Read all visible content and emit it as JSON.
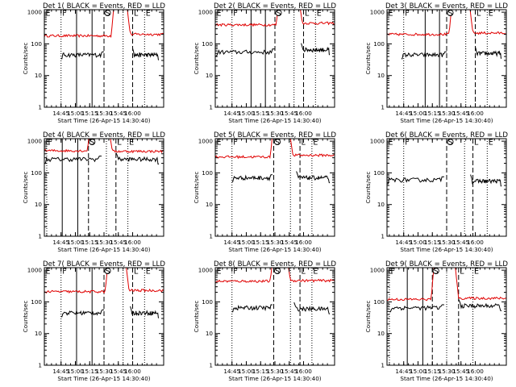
{
  "chart_data": [
    {
      "id": "det1",
      "type": "line",
      "title": "Det 1( BLACK = Events, RED = LLD",
      "xlabel": "Start Time (26-Apr-15 14:30:40)",
      "ylabel": "Counts/sec",
      "yscale": "log",
      "ylim": [
        1,
        1200
      ],
      "x_ticks": [
        "14:45",
        "15:00",
        "15:15",
        "15:30",
        "15:45",
        "16:00"
      ],
      "y_ticks": [
        "1",
        "10",
        "100",
        "1000"
      ],
      "lld": {
        "before": 180,
        "peak_start": 0.6,
        "peak_end": 0.67,
        "after": 200
      },
      "events": {
        "before": 45,
        "before_start": 0.14,
        "before_end": 0.5,
        "after": 45,
        "after_start": 0.74,
        "after_end": 0.96
      },
      "markers": [
        "E",
        "F",
        "S",
        "L",
        "E"
      ],
      "solid_lines": [
        0.27,
        0.4
      ],
      "dashed_lines": [
        0.5,
        0.74
      ],
      "dotted_lines": [
        0.14,
        0.66,
        0.84
      ]
    },
    {
      "id": "det2",
      "type": "line",
      "title": "Det 2( BLACK = Events, RED = LLD",
      "xlabel": "Start Time (26-Apr-15 14:30:40)",
      "ylabel": "Counts/sec",
      "yscale": "log",
      "ylim": [
        1,
        1200
      ],
      "x_ticks": [
        "14:45",
        "15:00",
        "15:15",
        "15:30",
        "15:45",
        "16:00"
      ],
      "y_ticks": [
        "1",
        "10",
        "100",
        "1000"
      ],
      "lld": {
        "before": 400,
        "peak_start": 0.55,
        "peak_end": 0.68,
        "after": 450
      },
      "events": {
        "before": 55,
        "before_start": 0.0,
        "before_end": 0.5,
        "after": 65,
        "after_start": 0.72,
        "after_end": 0.96
      },
      "markers": [
        "E",
        "F",
        "S",
        "L",
        "E"
      ],
      "solid_lines": [
        0.3,
        0.42
      ],
      "dashed_lines": [
        0.5,
        0.74
      ],
      "dotted_lines": [
        0.14,
        0.66,
        0.84
      ]
    },
    {
      "id": "det3",
      "type": "line",
      "title": "Det 3( BLACK = Events, RED = LLD",
      "xlabel": "Start Time (26-Apr-15 14:30:40)",
      "ylabel": "Counts/sec",
      "yscale": "log",
      "ylim": [
        1,
        1200
      ],
      "x_ticks": [
        "14:45",
        "15:00",
        "15:15",
        "15:30",
        "15:45",
        "16:00"
      ],
      "y_ticks": [
        "1",
        "10",
        "100",
        "1000"
      ],
      "lld": {
        "before": 200,
        "peak_start": 0.56,
        "peak_end": 0.67,
        "after": 220
      },
      "events": {
        "before": 45,
        "before_start": 0.12,
        "before_end": 0.5,
        "after": 50,
        "after_start": 0.74,
        "after_end": 0.96
      },
      "markers": [
        "E",
        "F",
        "S",
        "L",
        "E"
      ],
      "solid_lines": [
        0.32,
        0.44
      ],
      "dashed_lines": [
        0.5,
        0.74
      ],
      "dotted_lines": [
        0.14,
        0.66,
        0.84
      ]
    },
    {
      "id": "det4",
      "type": "line",
      "title": "Det 4( BLACK = Events, RED = LLD",
      "xlabel": "Start Time (26-Apr-15 14:30:40)",
      "ylabel": "Counts/sec",
      "yscale": "log",
      "ylim": [
        1,
        1200
      ],
      "x_ticks": [
        "14:45",
        "15:00",
        "15:15",
        "15:30",
        "15:45",
        "16:00"
      ],
      "y_ticks": [
        "1",
        "10",
        "100",
        "1000"
      ],
      "lld": {
        "before": 500,
        "peak_start": 0.4,
        "peak_end": 0.52,
        "after": 480
      },
      "events": {
        "before": 270,
        "before_start": 0.0,
        "before_end": 0.48,
        "after": 270,
        "after_start": 0.6,
        "after_end": 0.96
      },
      "markers": [
        "E",
        "F",
        "S",
        "L",
        "E"
      ],
      "solid_lines": [
        0.15,
        0.28
      ],
      "dashed_lines": [
        0.37,
        0.6
      ],
      "dotted_lines": [
        0.02,
        0.52,
        0.7
      ]
    },
    {
      "id": "det5",
      "type": "line",
      "title": "Det 5( BLACK = Events, RED = LLD",
      "xlabel": "Start Time (26-Apr-15 14:30:40)",
      "ylabel": "Counts/sec",
      "yscale": "log",
      "ylim": [
        1,
        1200
      ],
      "x_ticks": [
        "14:45",
        "15:00",
        "15:15",
        "15:30",
        "15:45",
        "16:00"
      ],
      "y_ticks": [
        "1",
        "10",
        "100",
        "1000"
      ],
      "lld": {
        "before": 320,
        "peak_start": 0.5,
        "peak_end": 0.6,
        "after": 360
      },
      "events": {
        "before": 70,
        "before_start": 0.14,
        "before_end": 0.48,
        "after": 70,
        "after_start": 0.68,
        "after_end": 0.96
      },
      "markers": [
        "E",
        "F",
        "S",
        "L",
        "E"
      ],
      "solid_lines": [],
      "dashed_lines": [
        0.49,
        0.71
      ],
      "dotted_lines": [
        0.14,
        0.63,
        0.81
      ]
    },
    {
      "id": "det6",
      "type": "line",
      "title": "Det 6( BLACK = Events, RED = LLD",
      "xlabel": "Start Time (26-Apr-15 14:30:40)",
      "ylabel": "Counts/sec",
      "yscale": "log",
      "ylim": [
        1,
        1200
      ],
      "x_ticks": [
        "14:45",
        "15:00",
        "15:15",
        "15:30",
        "15:45",
        "16:00"
      ],
      "y_ticks": [
        "1",
        "10",
        "100",
        "1000"
      ],
      "lld": null,
      "events": {
        "before": 60,
        "before_start": 0.0,
        "before_end": 0.48,
        "after": 55,
        "after_start": 0.7,
        "after_end": 0.96
      },
      "markers": [
        "E",
        "F",
        "S",
        "L",
        "E"
      ],
      "solid_lines": [],
      "dashed_lines": [
        0.5,
        0.72
      ],
      "dotted_lines": [
        0.14,
        0.65,
        0.84
      ]
    },
    {
      "id": "det7",
      "type": "line",
      "title": "Det 7( BLACK = Events, RED = LLD",
      "xlabel": "Start Time (26-Apr-15 14:30:40)",
      "ylabel": "Counts/sec",
      "yscale": "log",
      "ylim": [
        1,
        1200
      ],
      "x_ticks": [
        "14:45",
        "15:00",
        "15:15",
        "15:30",
        "15:45",
        "16:00"
      ],
      "y_ticks": [
        "1",
        "10",
        "100",
        "1000"
      ],
      "lld": {
        "before": 210,
        "peak_start": 0.55,
        "peak_end": 0.66,
        "after": 230
      },
      "events": {
        "before": 45,
        "before_start": 0.14,
        "before_end": 0.5,
        "after": 45,
        "after_start": 0.72,
        "after_end": 0.96
      },
      "markers": [
        "E",
        "F",
        "S",
        "L",
        "E"
      ],
      "solid_lines": [
        0.27,
        0.4
      ],
      "dashed_lines": [
        0.5,
        0.74
      ],
      "dotted_lines": [
        0.14,
        0.66,
        0.84
      ]
    },
    {
      "id": "det8",
      "type": "line",
      "title": "Det 8( BLACK = Events, RED = LLD",
      "xlabel": "Start Time (26-Apr-15 14:30:40)",
      "ylabel": "Counts/sec",
      "yscale": "log",
      "ylim": [
        1,
        1200
      ],
      "x_ticks": [
        "14:45",
        "15:00",
        "15:15",
        "15:30",
        "15:45",
        "16:00"
      ],
      "y_ticks": [
        "1",
        "10",
        "100",
        "1000"
      ],
      "lld": {
        "before": 450,
        "peak_start": 0.5,
        "peak_end": 0.58,
        "after": 470
      },
      "events": {
        "before": 65,
        "before_start": 0.14,
        "before_end": 0.48,
        "after": 60,
        "after_start": 0.66,
        "after_end": 0.96
      },
      "markers": [
        "E",
        "F",
        "S",
        "L",
        "E"
      ],
      "solid_lines": [],
      "dashed_lines": [
        0.49,
        0.71
      ],
      "dotted_lines": [
        0.14,
        0.63,
        0.81
      ]
    },
    {
      "id": "det9",
      "type": "line",
      "title": "Det 9( BLACK = Events, RED = LLD",
      "xlabel": "Start Time (26-Apr-15 14:30:40)",
      "ylabel": "Counts/sec",
      "yscale": "log",
      "ylim": [
        1,
        1200
      ],
      "x_ticks": [
        "14:45",
        "15:00",
        "15:15",
        "15:30",
        "15:45",
        "16:00"
      ],
      "y_ticks": [
        "1",
        "10",
        "100",
        "1000"
      ],
      "lld": {
        "before": 120,
        "peak_start": 0.41,
        "peak_end": 0.55,
        "after": 130
      },
      "events": {
        "before": 65,
        "before_start": 0.02,
        "before_end": 0.48,
        "after": 75,
        "after_start": 0.6,
        "after_end": 0.96
      },
      "markers": [
        "E",
        "F",
        "S",
        "L",
        "E"
      ],
      "solid_lines": [
        0.17,
        0.3
      ],
      "dashed_lines": [
        0.38,
        0.6
      ],
      "dotted_lines": [
        0.02,
        0.5,
        0.72
      ]
    }
  ]
}
